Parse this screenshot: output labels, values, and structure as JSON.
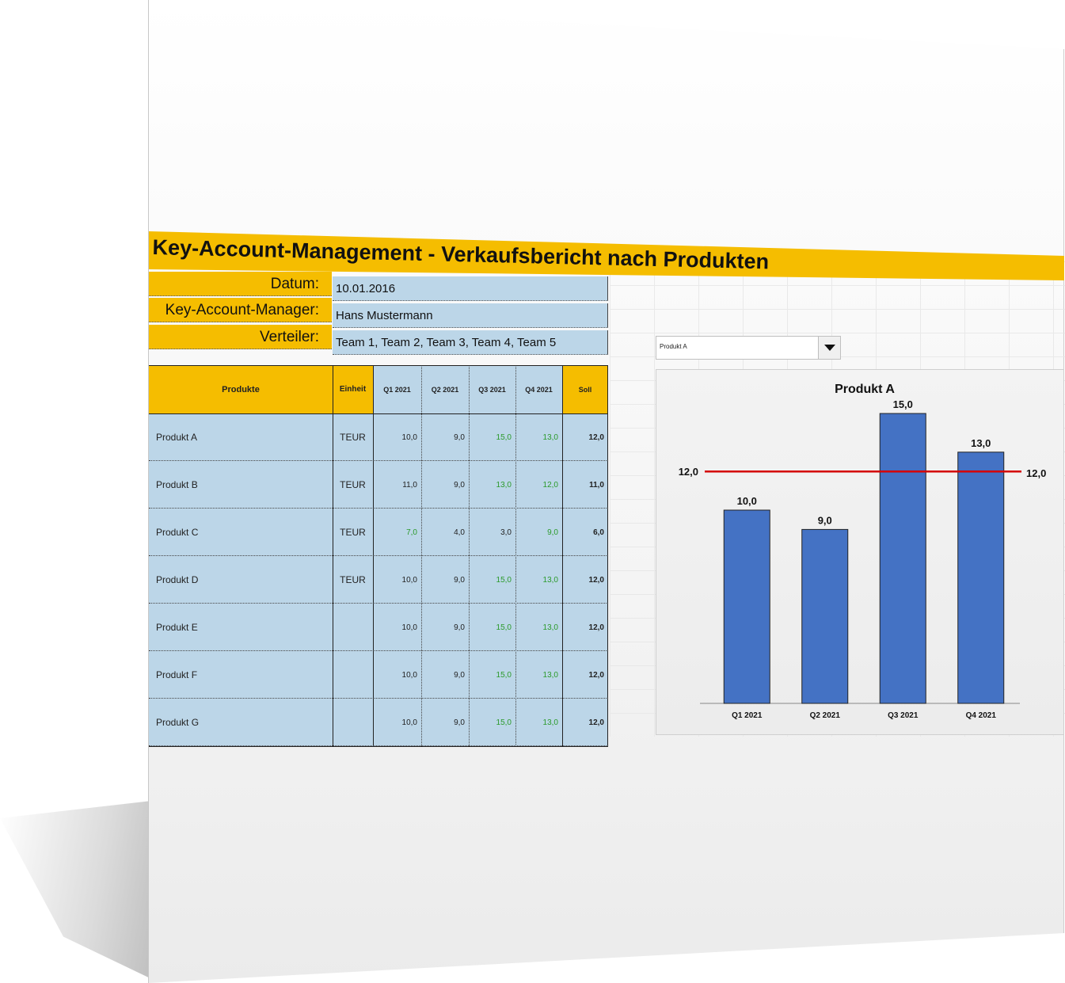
{
  "title": "Key-Account-Management - Verkaufsbericht nach Produkten",
  "info": {
    "datum_label": "Datum:",
    "datum_value": "10.01.2016",
    "manager_label": "Key-Account-Manager:",
    "manager_value": "Hans Mustermann",
    "verteiler_label": "Verteiler:",
    "verteiler_value": "Team 1, Team 2, Team 3, Team 4, Team 5"
  },
  "table": {
    "headers": [
      "Produkte",
      "Einheit",
      "Q1 2021",
      "Q2 2021",
      "Q3 2021",
      "Q4 2021",
      "Soll"
    ],
    "rows": [
      {
        "name": "Produkt A",
        "unit": "TEUR",
        "q1": "10,0",
        "q2": "9,0",
        "q3": "15,0",
        "q4": "13,0",
        "soll": "12,0"
      },
      {
        "name": "Produkt B",
        "unit": "TEUR",
        "q1": "11,0",
        "q2": "9,0",
        "q3": "13,0",
        "q4": "12,0",
        "soll": "11,0"
      },
      {
        "name": "Produkt C",
        "unit": "TEUR",
        "q1": "7,0",
        "q2": "4,0",
        "q3": "3,0",
        "q4": "9,0",
        "soll": "6,0"
      },
      {
        "name": "Produkt D",
        "unit": "TEUR",
        "q1": "10,0",
        "q2": "9,0",
        "q3": "15,0",
        "q4": "13,0",
        "soll": "12,0"
      },
      {
        "name": "Produkt E",
        "unit": "",
        "q1": "10,0",
        "q2": "9,0",
        "q3": "15,0",
        "q4": "13,0",
        "soll": "12,0"
      },
      {
        "name": "Produkt F",
        "unit": "",
        "q1": "10,0",
        "q2": "9,0",
        "q3": "15,0",
        "q4": "13,0",
        "soll": "12,0"
      },
      {
        "name": "Produkt G",
        "unit": "",
        "q1": "10,0",
        "q2": "9,0",
        "q3": "15,0",
        "q4": "13,0",
        "soll": "12,0"
      }
    ],
    "green_cells": {
      "0": [
        "q3",
        "q4"
      ],
      "1": [
        "q3",
        "q4"
      ],
      "2": [
        "q1",
        "q4"
      ],
      "3": [
        "q3",
        "q4"
      ],
      "4": [
        "q3",
        "q4"
      ],
      "5": [
        "q3",
        "q4"
      ],
      "6": [
        "q3",
        "q4"
      ]
    }
  },
  "dropdown": {
    "selected": "Produkt A",
    "icon": "chevron-down-icon"
  },
  "colors": {
    "accent_yellow": "#f5bd00",
    "cell_blue": "#bcd6e8",
    "bar_blue": "#4472c4",
    "target_line_red": "#d40000",
    "positive_green": "#2b9a2b"
  },
  "chart_data": {
    "type": "bar",
    "title": "Produkt A",
    "categories": [
      "Q1 2021",
      "Q2 2021",
      "Q3 2021",
      "Q4 2021"
    ],
    "values": [
      10.0,
      9.0,
      15.0,
      13.0
    ],
    "value_labels": [
      "10,0",
      "9,0",
      "15,0",
      "13,0"
    ],
    "target": 12.0,
    "target_label": "12,0",
    "ylim": [
      0,
      15
    ],
    "xlabel": "",
    "ylabel": "",
    "grid": false,
    "legend": "none"
  }
}
